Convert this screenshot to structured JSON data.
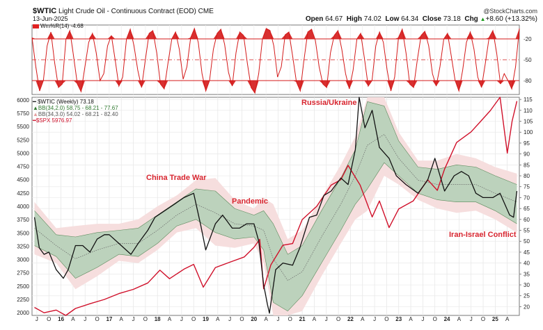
{
  "header": {
    "symbol": "$WTIC",
    "name": "Light Crude Oil - Continuous Contract (EOD)",
    "exchange": "CME",
    "date": "13-Jun-2025",
    "brand": "@StockCharts.com",
    "open_label": "Open",
    "open": "64.67",
    "high_label": "High",
    "high": "74.02",
    "low_label": "Low",
    "low": "64.34",
    "close_label": "Close",
    "close": "73.18",
    "chg_label": "Chg",
    "chg": "+8.60 (+13.32%)",
    "chg_icon": "up-triangle-icon"
  },
  "indicator": {
    "label": "Wm%R(14) -4.68",
    "ticks": [
      "-20",
      "-50",
      "-80"
    ]
  },
  "legend": {
    "wtic": "$WTIC (Weekly) 73.18",
    "bb1": "BB(34,2.0) 58.75 - 68.21 - 77.67",
    "bb2": "BB(34,3.0) 54.02 - 68.21 - 82.40",
    "spx": "$SPX 5976.97"
  },
  "annotations": {
    "china": "China Trade War",
    "pandemic": "Pandemic",
    "russia": "Russia/Ukraine",
    "iran": "Iran-Israel Conflict"
  },
  "colors": {
    "wtic": "#111111",
    "spx": "#d0102a",
    "bb_inner_fill": "#bcd2bc",
    "bb_outer_fill": "#f6dede",
    "annotation": "#d8252f",
    "willr": "#d41a1a"
  },
  "chart_data": {
    "type": "line",
    "title": "$WTIC Light Crude Oil - Continuous Contract (EOD)",
    "x_ticks": [
      "J",
      "O",
      "16",
      "A",
      "J",
      "O",
      "17",
      "A",
      "J",
      "O",
      "18",
      "A",
      "J",
      "O",
      "19",
      "A",
      "J",
      "O",
      "20",
      "A",
      "J",
      "O",
      "21",
      "A",
      "J",
      "O",
      "22",
      "A",
      "J",
      "O",
      "23",
      "A",
      "J",
      "O",
      "24",
      "A",
      "J",
      "O",
      "25",
      "A"
    ],
    "y_left_ticks": [
      2000,
      2250,
      2500,
      2750,
      3000,
      3250,
      3500,
      3750,
      4000,
      4250,
      4500,
      4750,
      5000,
      5250,
      5500,
      5750,
      6000
    ],
    "y_left_range": [
      1950,
      6050
    ],
    "y_right_ticks": [
      20,
      25,
      30,
      35,
      40,
      45,
      50,
      55,
      60,
      65,
      70,
      75,
      80,
      85,
      90,
      95,
      100,
      105,
      110,
      115
    ],
    "y_right_range": [
      16,
      116
    ],
    "series": [
      {
        "name": "$WTIC (Weekly)",
        "axis": "right",
        "x": [
          2015.45,
          2015.55,
          2015.65,
          2015.75,
          2015.9,
          2016.05,
          2016.15,
          2016.3,
          2016.45,
          2016.6,
          2016.75,
          2016.9,
          2017.0,
          2017.2,
          2017.45,
          2017.6,
          2017.8,
          2017.95,
          2018.15,
          2018.35,
          2018.55,
          2018.75,
          2018.9,
          2019.0,
          2019.2,
          2019.35,
          2019.55,
          2019.7,
          2019.85,
          2020.0,
          2020.1,
          2020.2,
          2020.28,
          2020.32,
          2020.45,
          2020.6,
          2020.8,
          2020.95,
          2021.15,
          2021.3,
          2021.45,
          2021.6,
          2021.8,
          2021.95,
          2022.1,
          2022.18,
          2022.3,
          2022.45,
          2022.6,
          2022.8,
          2022.95,
          2023.15,
          2023.4,
          2023.6,
          2023.75,
          2023.95,
          2024.15,
          2024.3,
          2024.45,
          2024.6,
          2024.75,
          2024.95,
          2025.1,
          2025.3,
          2025.38,
          2025.45
        ],
        "values": [
          61,
          47,
          44,
          45,
          37,
          33,
          37,
          48,
          48,
          45,
          51,
          53,
          53,
          49,
          44,
          49,
          55,
          61,
          64,
          67,
          70,
          72,
          57,
          46,
          58,
          62,
          56,
          56,
          58,
          58,
          50,
          30,
          21,
          17,
          37,
          40,
          39,
          47,
          61,
          62,
          71,
          73,
          79,
          76,
          92,
          118,
          102,
          110,
          93,
          88,
          80,
          76,
          72,
          78,
          88,
          73,
          80,
          82,
          80,
          72,
          70,
          70,
          72,
          62,
          61,
          73
        ]
      },
      {
        "name": "$SPX",
        "axis": "left",
        "x": [
          2015.45,
          2015.65,
          2015.9,
          2016.1,
          2016.3,
          2016.6,
          2016.9,
          2017.2,
          2017.5,
          2017.8,
          2018.05,
          2018.25,
          2018.55,
          2018.75,
          2018.95,
          2019.2,
          2019.5,
          2019.8,
          2020.0,
          2020.12,
          2020.2,
          2020.35,
          2020.6,
          2020.8,
          2021.0,
          2021.3,
          2021.6,
          2021.8,
          2021.95,
          2022.2,
          2022.45,
          2022.6,
          2022.8,
          2023.0,
          2023.3,
          2023.6,
          2023.8,
          2023.95,
          2024.2,
          2024.5,
          2024.7,
          2024.9,
          2025.1,
          2025.25,
          2025.35,
          2025.45
        ],
        "values": [
          2100,
          2000,
          2050,
          1930,
          2080,
          2170,
          2250,
          2360,
          2440,
          2560,
          2800,
          2640,
          2820,
          2910,
          2480,
          2850,
          2950,
          3050,
          3230,
          3380,
          2450,
          2900,
          3270,
          3300,
          3750,
          4000,
          4400,
          4500,
          4770,
          4400,
          3800,
          4100,
          3600,
          3950,
          4100,
          4500,
          4300,
          4700,
          5200,
          5400,
          5600,
          5800,
          6100,
          5000,
          5600,
          5977
        ]
      },
      {
        "name": "BB(34,2.0)",
        "axis": "right",
        "x": [
          2015.45,
          2015.9,
          2016.3,
          2016.75,
          2017.2,
          2017.6,
          2018.0,
          2018.4,
          2018.8,
          2019.2,
          2019.6,
          2020.0,
          2020.2,
          2020.4,
          2020.7,
          2021.0,
          2021.4,
          2021.8,
          2022.1,
          2022.35,
          2022.7,
          2023.0,
          2023.4,
          2023.8,
          2024.2,
          2024.6,
          2025.0,
          2025.45
        ],
        "upper": [
          64,
          53,
          52,
          54,
          55,
          56,
          62,
          68,
          74,
          73,
          65,
          62,
          64,
          58,
          44,
          48,
          64,
          79,
          92,
          114,
          112,
          96,
          84,
          83,
          85,
          84,
          80,
          76
        ],
        "middle": [
          56,
          48,
          42,
          46,
          49,
          49,
          55,
          62,
          67,
          63,
          58,
          57,
          55,
          42,
          32,
          36,
          52,
          67,
          80,
          94,
          99,
          88,
          78,
          76,
          76,
          76,
          72,
          68
        ],
        "lower": [
          48,
          43,
          33,
          38,
          44,
          43,
          49,
          57,
          60,
          54,
          51,
          52,
          46,
          22,
          18,
          25,
          40,
          55,
          67,
          74,
          86,
          80,
          72,
          69,
          68,
          68,
          64,
          58
        ]
      },
      {
        "name": "BB(34,3.0)",
        "axis": "right",
        "x": [
          2015.45,
          2015.9,
          2016.3,
          2016.75,
          2017.2,
          2017.6,
          2018.0,
          2018.4,
          2018.8,
          2019.2,
          2019.6,
          2020.0,
          2020.2,
          2020.4,
          2020.7,
          2021.0,
          2021.4,
          2021.8,
          2022.1,
          2022.35,
          2022.7,
          2023.0,
          2023.4,
          2023.8,
          2024.2,
          2024.6,
          2025.0,
          2025.45
        ],
        "upper": [
          68,
          56,
          57,
          58,
          58,
          60,
          66,
          71,
          78,
          79,
          69,
          65,
          70,
          67,
          51,
          55,
          70,
          85,
          98,
          124,
          118,
          100,
          87,
          87,
          90,
          88,
          84,
          81
        ],
        "lower": [
          44,
          40,
          28,
          34,
          41,
          40,
          46,
          54,
          56,
          48,
          47,
          49,
          40,
          13,
          12,
          18,
          34,
          49,
          60,
          64,
          80,
          76,
          69,
          65,
          63,
          64,
          60,
          54
        ]
      },
      {
        "name": "Wm%R(14)",
        "panel": "indicator",
        "range": [
          -100,
          0
        ],
        "x_count": 130,
        "values": [
          -18,
          -60,
          -95,
          -80,
          -30,
          -10,
          -55,
          -90,
          -85,
          -20,
          -8,
          -45,
          -85,
          -96,
          -60,
          -25,
          -12,
          -40,
          -80,
          -70,
          -30,
          -15,
          -50,
          -88,
          -75,
          -20,
          -6,
          -30,
          -65,
          -90,
          -50,
          -12,
          -8,
          -40,
          -85,
          -92,
          -55,
          -20,
          -10,
          -35,
          -78,
          -60,
          -18,
          -5,
          -25,
          -70,
          -95,
          -80,
          -35,
          -12,
          -6,
          -28,
          -68,
          -88,
          -40,
          -10,
          -15,
          -55,
          -90,
          -98,
          -70,
          -20,
          -5,
          -8,
          -30,
          -75,
          -60,
          -14,
          -10,
          -45,
          -82,
          -95,
          -50,
          -10,
          -6,
          -22,
          -60,
          -85,
          -90,
          -40,
          -15,
          -8,
          -35,
          -70,
          -92,
          -65,
          -20,
          -12,
          -48,
          -88,
          -80,
          -30,
          -10,
          -25,
          -65,
          -95,
          -75,
          -18,
          -6,
          -40,
          -85,
          -90,
          -50,
          -15,
          -9,
          -30,
          -70,
          -88,
          -60,
          -20,
          -12,
          -45,
          -80,
          -95,
          -65,
          -25,
          -10,
          -35,
          -75,
          -90,
          -55,
          -18,
          -8,
          -40,
          -85,
          -70,
          -80,
          -92,
          -60,
          -5
        ]
      }
    ],
    "annotations": [
      "China Trade War",
      "Pandemic",
      "Russia/Ukraine",
      "Iran-Israel Conflict"
    ]
  }
}
